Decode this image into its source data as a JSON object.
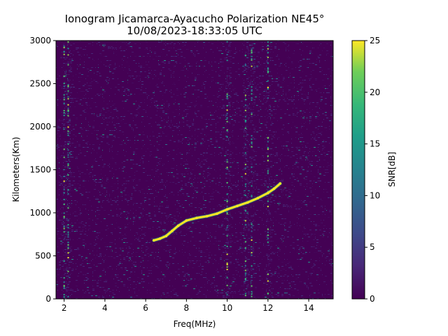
{
  "chart_data": {
    "type": "heatmap",
    "title_line1": "Ionogram Jicamarca-Ayacucho Polarization NE45°",
    "title_line2": "10/08/2023-18:33:05 UTC",
    "xlabel": "Freq(MHz)",
    "ylabel": "Kilometers(Km)",
    "colorbar_label": "SNR[dB]",
    "colormap": "viridis",
    "xlim": [
      1.6,
      15.2
    ],
    "ylim": [
      0,
      3000
    ],
    "clim": [
      0,
      25
    ],
    "xticks": [
      "2",
      "4",
      "6",
      "8",
      "10",
      "12",
      "14"
    ],
    "yticks": [
      "0",
      "500",
      "1000",
      "1500",
      "2000",
      "2500",
      "3000"
    ],
    "cticks": [
      "0",
      "5",
      "10",
      "15",
      "20",
      "25"
    ],
    "trace": {
      "name": "F-region echo trace",
      "x": [
        6.4,
        6.7,
        7.0,
        7.3,
        7.6,
        8.0,
        8.5,
        9.0,
        9.5,
        10.0,
        10.5,
        11.0,
        11.5,
        12.0,
        12.3,
        12.6
      ],
      "y": [
        680,
        700,
        730,
        790,
        850,
        910,
        940,
        960,
        990,
        1040,
        1080,
        1120,
        1170,
        1230,
        1280,
        1340
      ],
      "snr": 25
    },
    "noise_columns_mhz": [
      2.0,
      2.2,
      10.0,
      10.9,
      11.2,
      12.0
    ],
    "noise_snr_range": [
      0,
      8
    ]
  }
}
